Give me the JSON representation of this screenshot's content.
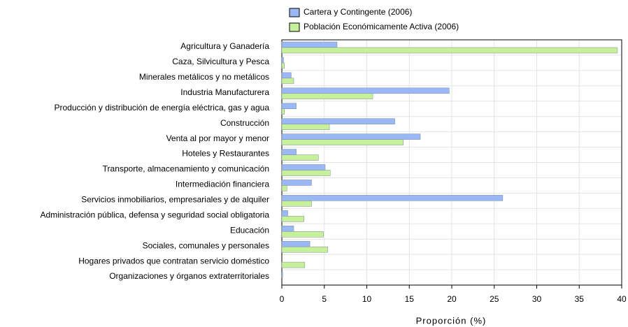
{
  "chart_data": {
    "type": "hbar",
    "xlabel": "Proporción (%)",
    "categories": [
      "Agricultura y Ganadería",
      "Caza, Silvicultura y Pesca",
      "Minerales metálicos y no metálicos",
      "Industria Manufacturera",
      "Producción y distribución de energía eléctrica, gas y agua",
      "Construcción",
      "Venta al por mayor y menor",
      "Hoteles y Restaurantes",
      "Transporte, almacenamiento y comunicación",
      "Intermediación financiera",
      "Servicios inmobiliarios, empresariales y de alquiler",
      "Administración pública, defensa y seguridad social obligatoria",
      "Educación",
      "Sociales, comunales y personales",
      "Hogares privados que contratan servicio doméstico",
      "Organizaciones y órganos extraterritoriales"
    ],
    "series": [
      {
        "name": "Cartera y Contingente (2006)",
        "color": "#9ab8f5",
        "values": [
          6.5,
          0.2,
          1.1,
          19.7,
          1.7,
          13.3,
          16.3,
          1.7,
          5.1,
          3.5,
          26.0,
          0.7,
          1.4,
          3.3,
          0,
          0.1
        ]
      },
      {
        "name": "Población Económicamente Activa (2006)",
        "color": "#c6f09a",
        "values": [
          39.5,
          0.3,
          1.4,
          10.7,
          0.3,
          5.6,
          14.3,
          4.3,
          5.7,
          0.6,
          3.5,
          2.6,
          4.9,
          5.4,
          2.7,
          0
        ]
      }
    ],
    "xlim": [
      0,
      40
    ],
    "xticks": [
      0,
      5,
      10,
      15,
      20,
      25,
      30,
      35,
      40
    ],
    "grid": true
  }
}
